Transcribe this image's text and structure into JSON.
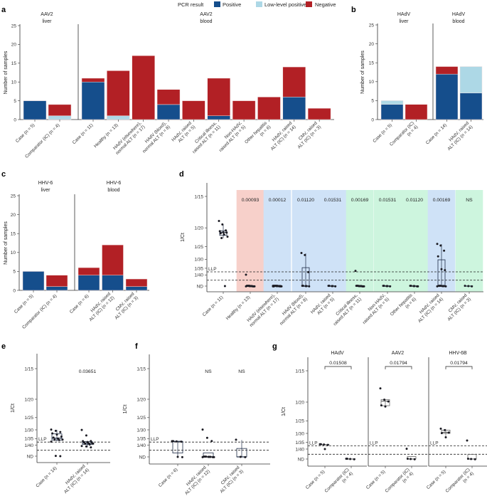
{
  "legend": {
    "title": "PCR result",
    "items": [
      {
        "label": "Positive",
        "color": "#154e8c"
      },
      {
        "label": "Low-level positive",
        "color": "#add8e6"
      },
      {
        "label": "Negative",
        "color": "#b22025"
      }
    ]
  },
  "chart_data": [
    {
      "panel_label": "a",
      "type": "bar",
      "stacked": true,
      "ylabel": "Number of samples",
      "ylim": [
        0,
        25
      ],
      "yticks": [
        0,
        5,
        10,
        15,
        20,
        25
      ],
      "facets": [
        {
          "title": [
            "AAV2",
            "liver"
          ],
          "categories": [
            {
              "label": [
                "Case (n = 5)"
              ],
              "positive": 5,
              "low_level_positive": 0,
              "negative": 0
            },
            {
              "label": [
                "Comparator (IC) (n = 4)"
              ],
              "positive": 0,
              "low_level_positive": 1,
              "negative": 3
            }
          ]
        },
        {
          "title": [
            "AAV2",
            "blood"
          ],
          "categories": [
            {
              "label": [
                "Case (n = 11)"
              ],
              "positive": 10,
              "low_level_positive": 0,
              "negative": 1
            },
            {
              "label": [
                "Healthy (n = 13)"
              ],
              "positive": 0,
              "low_level_positive": 1,
              "negative": 12
            },
            {
              "label": [
                "HAdV (elsewhere),",
                "normal ALT (n = 17)"
              ],
              "positive": 0,
              "low_level_positive": 0,
              "negative": 17
            },
            {
              "label": [
                "HAdV (blood),",
                "normal ALT (n = 8)"
              ],
              "positive": 4,
              "low_level_positive": 0,
              "negative": 4
            },
            {
              "label": [
                "HAdV, raised",
                "ALT (n = 5)"
              ],
              "positive": 0,
              "low_level_positive": 0,
              "negative": 5
            },
            {
              "label": [
                "Critical illness,",
                "raised ALT (n = 11)"
              ],
              "positive": 1,
              "low_level_positive": 0,
              "negative": 10
            },
            {
              "label": [
                "Non-HAdV,",
                "raised ALT (n = 5)"
              ],
              "positive": 0,
              "low_level_positive": 0,
              "negative": 5
            },
            {
              "label": [
                "Other hepatitis",
                "(n = 6)"
              ],
              "positive": 0,
              "low_level_positive": 0,
              "negative": 6
            },
            {
              "label": [
                "HAdV, raised",
                "ALT (IC) (n = 14)"
              ],
              "positive": 6,
              "low_level_positive": 0,
              "negative": 8
            },
            {
              "label": [
                "CMV, raised",
                "ALT (IC) (n = 3)"
              ],
              "positive": 0,
              "low_level_positive": 0,
              "negative": 3
            }
          ]
        }
      ]
    },
    {
      "panel_label": "b",
      "type": "bar",
      "stacked": true,
      "ylabel": "Number of samples",
      "ylim": [
        0,
        25
      ],
      "yticks": [
        0,
        5,
        10,
        15,
        20,
        25
      ],
      "facets": [
        {
          "title": [
            "HAdV",
            "liver"
          ],
          "categories": [
            {
              "label": [
                "Case (n = 5)"
              ],
              "positive": 4,
              "low_level_positive": 1,
              "negative": 0
            },
            {
              "label": [
                "Comparator (IC)",
                "(n = 4)"
              ],
              "positive": 0,
              "low_level_positive": 0,
              "negative": 4
            }
          ]
        },
        {
          "title": [
            "HAdV",
            "blood"
          ],
          "categories": [
            {
              "label": [
                "Case (n = 14)"
              ],
              "positive": 12,
              "low_level_positive": 0,
              "negative": 2
            },
            {
              "label": [
                "HAdV, raised",
                "ALT (IC) (n = 14)"
              ],
              "positive": 7,
              "low_level_positive": 7,
              "negative": 0
            }
          ]
        }
      ]
    },
    {
      "panel_label": "c",
      "type": "bar",
      "stacked": true,
      "ylabel": "Number of samples",
      "ylim": [
        0,
        25
      ],
      "yticks": [
        0,
        5,
        10,
        15,
        20,
        25
      ],
      "facets": [
        {
          "title": [
            "HHV-6",
            "liver"
          ],
          "categories": [
            {
              "label": [
                "Case (n = 5)"
              ],
              "positive": 5,
              "low_level_positive": 0,
              "negative": 0
            },
            {
              "label": [
                "Comparator (IC) (n = 4)"
              ],
              "positive": 1,
              "low_level_positive": 0,
              "negative": 3
            }
          ]
        },
        {
          "title": [
            "HHV-6",
            "blood"
          ],
          "categories": [
            {
              "label": [
                "Case (n = 6)"
              ],
              "positive": 4,
              "low_level_positive": 0,
              "negative": 2
            },
            {
              "label": [
                "HAdV, raised",
                "ALT (IC) (n = 12)"
              ],
              "positive": 4,
              "low_level_positive": 0,
              "negative": 8
            },
            {
              "label": [
                "CMV, raised",
                "ALT (IC) (n = 3)"
              ],
              "positive": 1,
              "low_level_positive": 0,
              "negative": 2
            }
          ]
        }
      ]
    },
    {
      "panel_label": "d",
      "type": "scatter",
      "boxplot": true,
      "ylabel": "1/Ct",
      "yticks": [
        "1/15",
        "1/20",
        "1/25",
        "1/30",
        "1/35",
        "1/40",
        "ND"
      ],
      "reference_lines": {
        "label": "LLP",
        "llp_ct": 37.5,
        "nd_cutoff_ct": 45
      },
      "groups": [
        {
          "label": [
            "Case (n = 11)"
          ],
          "background": null,
          "p_value": "",
          "ct_values": [
            18.7,
            19.3,
            20.5,
            20.8,
            21,
            21,
            21.3,
            21.5,
            22,
            22.5,
            "ND"
          ]
        },
        {
          "label": [
            "Healthy (n = 13)"
          ],
          "background": "#f7d0ca",
          "p_value": "0.00093",
          "ct_values": [
            40,
            "ND",
            "ND",
            "ND",
            "ND",
            "ND",
            "ND",
            "ND",
            "ND",
            "ND",
            "ND",
            "ND",
            "ND"
          ]
        },
        {
          "label": [
            "HAdV (elsewhere),",
            "normal ALT (n = 17)"
          ],
          "background": "#cfe2f7",
          "p_value": "0.00012",
          "ct_values": [
            "ND",
            "ND",
            "ND",
            "ND",
            "ND",
            "ND",
            "ND",
            "ND",
            "ND",
            "ND",
            "ND",
            "ND",
            "ND",
            "ND",
            "ND",
            "ND",
            "ND"
          ]
        },
        {
          "label": [
            "HAdV (blood),",
            "normal ALT (n = 8)"
          ],
          "background": "#cfe2f7",
          "p_value": "0.01120",
          "ct_values": [
            27.4,
            28.1,
            37.5,
            "ND",
            "ND",
            "ND",
            "ND",
            "ND"
          ]
        },
        {
          "label": [
            "HAdV, raised",
            "ALT (n = 5)"
          ],
          "background": "#cfe2f7",
          "p_value": "0.01531",
          "ct_values": [
            "ND",
            "ND",
            "ND",
            "ND",
            "ND"
          ]
        },
        {
          "label": [
            "Critical illness,",
            "raised ALT (n = 11)"
          ],
          "background": "#cdf5de",
          "p_value": "0.00169",
          "ct_values": [
            37,
            "ND",
            "ND",
            "ND",
            "ND",
            "ND",
            "ND",
            "ND",
            "ND",
            "ND",
            "ND"
          ]
        },
        {
          "label": [
            "Non-HAdV,",
            "raised ALT (n = 5)"
          ],
          "background": "#cdf5de",
          "p_value": "0.01531",
          "ct_values": [
            "ND",
            "ND",
            "ND",
            "ND",
            "ND"
          ]
        },
        {
          "label": [
            "Other hepatitis",
            "(n = 6)"
          ],
          "background": "#cdf5de",
          "p_value": "0.01120",
          "ct_values": [
            "ND",
            "ND",
            "ND",
            "ND",
            "ND",
            "ND"
          ]
        },
        {
          "label": [
            "HAdV, raised",
            "ALT (IC) (n = 14)"
          ],
          "background": "#cfe2f7",
          "p_value": "0.00169",
          "ct_values": [
            24.2,
            24.6,
            26.3,
            28.8,
            35.6,
            36.1,
            "ND",
            "ND",
            "ND",
            "ND",
            "ND",
            "ND",
            "ND",
            "ND"
          ]
        },
        {
          "label": [
            "CMV, raised",
            "ALT (IC) (n = 3)"
          ],
          "background": "#cdf5de",
          "p_value": "NS",
          "ct_values": [
            "ND",
            "ND",
            "ND"
          ]
        }
      ]
    },
    {
      "panel_label": "e",
      "type": "scatter",
      "boxplot": true,
      "ylabel": "1/Ct",
      "yticks": [
        "1/15",
        "1/20",
        "1/25",
        "1/30",
        "1/35",
        "1/40",
        "ND"
      ],
      "reference_lines": {
        "label": "LLP",
        "llp_ct": 37.5,
        "nd_cutoff_ct": 45
      },
      "groups": [
        {
          "label": [
            "Case (n = 14)"
          ],
          "p_value": "",
          "ct_values": [
            30,
            30.5,
            31,
            32,
            32.5,
            33.5,
            34.5,
            35,
            35.5,
            36,
            36,
            37,
            "ND",
            "ND"
          ]
        },
        {
          "label": [
            "HAdV, raised",
            "ALT (IC) (n = 14)"
          ],
          "p_value": "0.03651",
          "ct_values": [
            30.2,
            33,
            36.5,
            37,
            37.5,
            38,
            38,
            38.5,
            38.5,
            39,
            39.5,
            40.5,
            41.5,
            42
          ]
        }
      ]
    },
    {
      "panel_label": "f",
      "type": "scatter",
      "boxplot": true,
      "ylabel": "1/Ct",
      "yticks": [
        "1/15",
        "1/20",
        "1/25",
        "1/30",
        "1/35",
        "1/40",
        "ND"
      ],
      "reference_lines": {
        "label": "LLP",
        "llp_ct": 37.5,
        "nd_cutoff_ct": 45
      },
      "groups": [
        {
          "label": [
            "Case (n = 6)"
          ],
          "p_value": "",
          "ct_values": [
            37,
            37,
            37,
            37,
            "ND",
            "ND"
          ]
        },
        {
          "label": [
            "HAdV, raised",
            "ALT (IC) (n = 12)"
          ],
          "p_value": "NS",
          "ct_values": [
            30,
            34.5,
            36.5,
            "ND",
            "ND",
            "ND",
            "ND",
            "ND",
            "ND",
            "ND",
            "ND",
            "ND"
          ]
        },
        {
          "label": [
            "CMV, raised",
            "ALT (IC) (n = 3)"
          ],
          "p_value": "NS",
          "ct_values": [
            36,
            "ND",
            "ND"
          ]
        }
      ]
    },
    {
      "panel_label": "g",
      "type": "scatter",
      "boxplot": true,
      "ylabel": "1/Ct",
      "yticks": [
        "1/15",
        "1/20",
        "1/25",
        "1/30",
        "1/35",
        "1/40",
        "ND"
      ],
      "reference_lines": {
        "label": "LLP",
        "llp_ct": 37.5,
        "nd_cutoff_ct": 45
      },
      "facets": [
        {
          "title": [
            "HAdV"
          ],
          "p_value": "0.01508",
          "groups": [
            {
              "label": [
                "Case (n = 5)"
              ],
              "ct_values": [
                36.5,
                36.5,
                36.5,
                36.5,
                40
              ]
            },
            {
              "label": [
                "Comparator (IC)",
                "(n = 4)"
              ],
              "ct_values": [
                "ND",
                "ND",
                "ND",
                "ND"
              ]
            }
          ]
        },
        {
          "title": [
            "AAV2"
          ],
          "p_value": "0.01794",
          "groups": [
            {
              "label": [
                "Case (n = 5)"
              ],
              "ct_values": [
                17.5,
                19.5,
                19.8,
                20.8,
                21
              ]
            },
            {
              "label": [
                "Comparator (IC)",
                "(n = 4)"
              ],
              "ct_values": [
                40,
                "ND",
                "ND",
                "ND"
              ]
            }
          ]
        },
        {
          "title": [
            "HHV-6B"
          ],
          "p_value": "0.01794",
          "groups": [
            {
              "label": [
                "Case (n = 5)"
              ],
              "ct_values": [
                28,
                28.5,
                29.5,
                30,
                32
              ]
            },
            {
              "label": [
                "Comparator (IC)",
                "(n = 4)"
              ],
              "ct_values": [
                34,
                "ND",
                "ND",
                "ND"
              ]
            }
          ]
        }
      ]
    }
  ]
}
